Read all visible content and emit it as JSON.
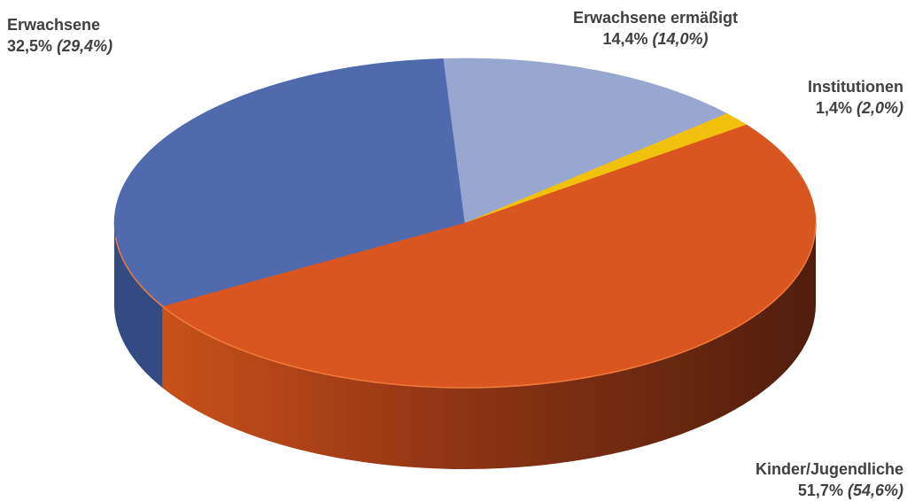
{
  "chart_data": {
    "type": "pie",
    "style": "3d",
    "categories": [
      "Erwachsene",
      "Erwachsene ermäßigt",
      "Institutionen",
      "Kinder/Jugendliche"
    ],
    "values": [
      32.5,
      14.4,
      1.4,
      51.7
    ],
    "previous_values": [
      29.4,
      14.0,
      2.0,
      54.6
    ],
    "value_labels": [
      "32,5%",
      "14,4%",
      "1,4%",
      "51,7%"
    ],
    "previous_labels": [
      "(29,4%)",
      "(14,0%)",
      "(2,0%)",
      "(54,6%)"
    ],
    "colors": [
      "#4F6AAD",
      "#97A7D0",
      "#F2C10E",
      "#D95620"
    ],
    "side_colors": [
      "#344A82",
      "#6E7FA8",
      "#B8900A",
      "#8E3A16"
    ],
    "legend": "none"
  }
}
